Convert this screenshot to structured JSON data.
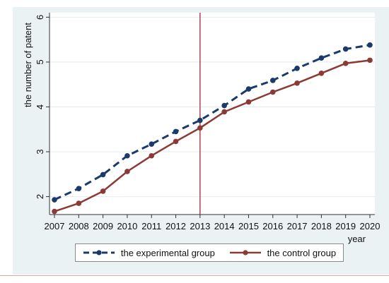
{
  "chart_data": {
    "type": "line",
    "title": "",
    "xlabel": "year",
    "ylabel": "the number of patent",
    "x": [
      2007,
      2008,
      2009,
      2010,
      2011,
      2012,
      2013,
      2014,
      2015,
      2016,
      2017,
      2018,
      2019,
      2020
    ],
    "xlim": [
      2007,
      2020
    ],
    "ylim": [
      1.6,
      6.1
    ],
    "y_ticks": [
      2,
      3,
      4,
      5,
      6
    ],
    "x_ticks": [
      2007,
      2008,
      2009,
      2010,
      2011,
      2012,
      2013,
      2014,
      2015,
      2016,
      2017,
      2018,
      2019,
      2020
    ],
    "grid": "horizontal",
    "vline": 2013,
    "legend_position": "bottom",
    "series": [
      {
        "name": "the experimental group",
        "values": [
          1.93,
          2.18,
          2.49,
          2.91,
          3.17,
          3.45,
          3.7,
          4.03,
          4.4,
          4.59,
          4.86,
          5.09,
          5.29,
          5.38
        ],
        "color": "#1a3a6b",
        "style": "dashed"
      },
      {
        "name": "the control group",
        "values": [
          1.67,
          1.85,
          2.12,
          2.56,
          2.91,
          3.23,
          3.53,
          3.89,
          4.11,
          4.33,
          4.53,
          4.75,
          4.97,
          5.04
        ],
        "color": "#8b3a35",
        "style": "solid"
      }
    ]
  },
  "colors": {
    "panel_background": "#eaf2f3",
    "plot_background": "#ffffff",
    "grid": "#e3ebed",
    "vline": "#9a2a3a",
    "axis": "#333333"
  }
}
